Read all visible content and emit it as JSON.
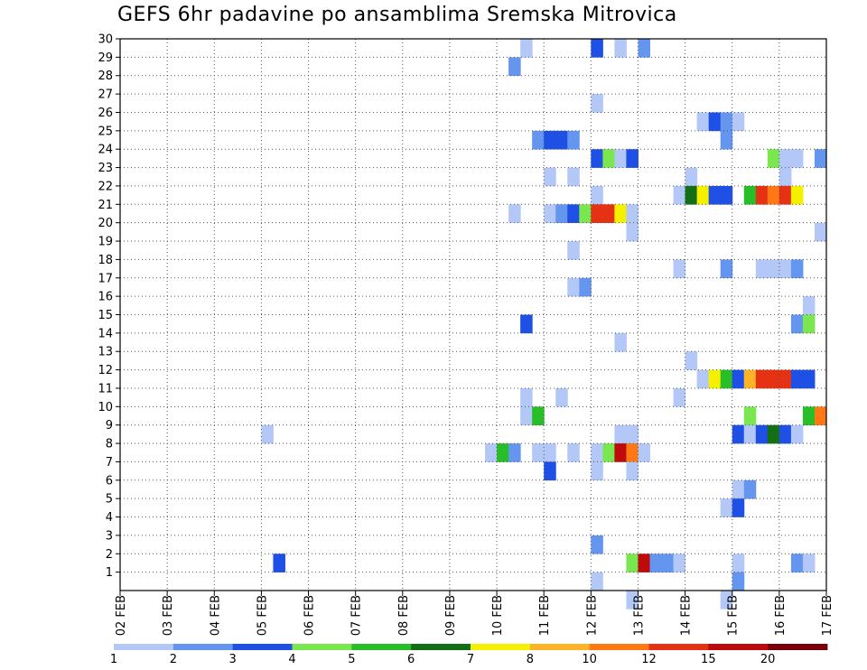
{
  "chart_data": {
    "type": "heatmap",
    "title": "GEFS 6hr padavine po ansamblima Sremska Mitrovica",
    "xlabel": "",
    "ylabel": "",
    "x_ticks": [
      "02 FEB",
      "03 FEB",
      "04 FEB",
      "05 FEB",
      "06 FEB",
      "07 FEB",
      "08 FEB",
      "09 FEB",
      "10 FEB",
      "11 FEB",
      "12 FEB",
      "13 FEB",
      "14 FEB",
      "15 FEB",
      "16 FEB",
      "17 FEB"
    ],
    "y_ticks": [
      "1",
      "2",
      "3",
      "4",
      "5",
      "6",
      "7",
      "8",
      "9",
      "10",
      "11",
      "12",
      "13",
      "14",
      "15",
      "16",
      "17",
      "18",
      "19",
      "20",
      "21",
      "22",
      "23",
      "24",
      "25",
      "26",
      "27",
      "28",
      "29",
      "30"
    ],
    "grid": true,
    "colorbar": {
      "tick_labels": [
        "1",
        "2",
        "3",
        "4",
        "5",
        "6",
        "7",
        "8",
        "10",
        "12",
        "15",
        "20"
      ],
      "colors": [
        "#b4c8f8",
        "#6496f0",
        "#1e50e6",
        "#7ae650",
        "#28be28",
        "#146e14",
        "#f5f000",
        "#ffb428",
        "#ff7814",
        "#e63214",
        "#be0a0a",
        "#78000a"
      ]
    },
    "cells": [
      [
        30,
        10.5,
        1
      ],
      [
        30,
        12.0,
        3
      ],
      [
        30,
        12.5,
        1
      ],
      [
        30,
        13.0,
        2
      ],
      [
        29,
        10.25,
        2
      ],
      [
        29,
        17.0,
        2
      ],
      [
        27,
        12.0,
        1
      ],
      [
        26,
        14.25,
        1
      ],
      [
        26,
        14.5,
        3
      ],
      [
        26,
        14.75,
        2
      ],
      [
        26,
        15.0,
        1
      ],
      [
        25,
        10.75,
        2
      ],
      [
        25,
        11.0,
        3
      ],
      [
        25,
        11.25,
        3
      ],
      [
        25,
        11.5,
        2
      ],
      [
        25,
        14.75,
        2
      ],
      [
        24,
        12.0,
        3
      ],
      [
        24,
        12.25,
        4
      ],
      [
        24,
        12.5,
        1
      ],
      [
        24,
        12.75,
        3
      ],
      [
        24,
        15.75,
        4
      ],
      [
        24,
        16.0,
        1
      ],
      [
        24,
        16.25,
        1
      ],
      [
        24,
        16.75,
        2
      ],
      [
        23,
        11.0,
        1
      ],
      [
        23,
        11.5,
        1
      ],
      [
        23,
        14.0,
        1
      ],
      [
        23,
        16.0,
        1
      ],
      [
        22,
        12.0,
        1
      ],
      [
        22,
        13.75,
        1
      ],
      [
        22,
        14.0,
        6
      ],
      [
        22,
        14.25,
        7
      ],
      [
        22,
        14.5,
        3
      ],
      [
        22,
        14.75,
        3
      ],
      [
        22,
        15.25,
        5
      ],
      [
        22,
        15.5,
        10
      ],
      [
        22,
        15.75,
        9
      ],
      [
        22,
        16.0,
        10
      ],
      [
        22,
        16.25,
        7
      ],
      [
        22,
        17.0,
        4
      ],
      [
        21,
        10.25,
        1
      ],
      [
        21,
        11.0,
        1
      ],
      [
        21,
        11.25,
        2
      ],
      [
        21,
        11.5,
        3
      ],
      [
        21,
        11.75,
        4
      ],
      [
        21,
        12.0,
        10
      ],
      [
        21,
        12.25,
        10
      ],
      [
        21,
        12.5,
        7
      ],
      [
        21,
        12.75,
        1
      ],
      [
        20,
        12.75,
        1
      ],
      [
        20,
        16.75,
        1
      ],
      [
        19,
        11.5,
        1
      ],
      [
        18,
        13.75,
        1
      ],
      [
        18,
        14.75,
        2
      ],
      [
        18,
        15.5,
        1
      ],
      [
        18,
        15.75,
        1
      ],
      [
        18,
        16.0,
        1
      ],
      [
        18,
        16.25,
        2
      ],
      [
        17,
        11.5,
        1
      ],
      [
        17,
        11.75,
        2
      ],
      [
        16,
        16.5,
        1
      ],
      [
        15,
        10.5,
        3
      ],
      [
        15,
        16.25,
        2
      ],
      [
        15,
        16.5,
        4
      ],
      [
        14,
        12.5,
        1
      ],
      [
        13,
        14.0,
        1
      ],
      [
        12,
        14.25,
        1
      ],
      [
        12,
        14.5,
        7
      ],
      [
        12,
        14.75,
        5
      ],
      [
        12,
        15.0,
        3
      ],
      [
        12,
        15.25,
        8
      ],
      [
        12,
        15.5,
        10
      ],
      [
        12,
        15.75,
        10
      ],
      [
        12,
        16.0,
        10
      ],
      [
        12,
        16.25,
        3
      ],
      [
        12,
        16.5,
        3
      ],
      [
        11,
        11.25,
        1
      ],
      [
        11,
        10.5,
        1
      ],
      [
        11,
        13.75,
        1
      ],
      [
        10,
        10.5,
        1
      ],
      [
        10,
        10.75,
        5
      ],
      [
        10,
        15.25,
        4
      ],
      [
        10,
        16.5,
        5
      ],
      [
        10,
        16.75,
        9
      ],
      [
        10,
        17.0,
        7
      ],
      [
        9,
        5.0,
        1
      ],
      [
        9,
        12.5,
        1
      ],
      [
        9,
        12.75,
        1
      ],
      [
        9,
        15.0,
        3
      ],
      [
        9,
        15.25,
        1
      ],
      [
        9,
        15.5,
        3
      ],
      [
        9,
        15.75,
        6
      ],
      [
        9,
        16.0,
        3
      ],
      [
        9,
        16.25,
        1
      ],
      [
        8,
        9.75,
        1
      ],
      [
        8,
        10.0,
        5
      ],
      [
        8,
        10.25,
        2
      ],
      [
        8,
        10.75,
        1
      ],
      [
        8,
        11.0,
        1
      ],
      [
        8,
        11.5,
        1
      ],
      [
        8,
        12.0,
        1
      ],
      [
        8,
        12.25,
        4
      ],
      [
        8,
        12.5,
        11
      ],
      [
        8,
        12.75,
        9
      ],
      [
        8,
        13.0,
        1
      ],
      [
        7,
        11.0,
        3
      ],
      [
        7,
        12.0,
        1
      ],
      [
        7,
        12.75,
        1
      ],
      [
        6,
        15.0,
        1
      ],
      [
        6,
        15.25,
        2
      ],
      [
        5,
        14.75,
        1
      ],
      [
        5,
        15.0,
        3
      ],
      [
        4,
        17.0,
        2
      ],
      [
        3,
        12.0,
        2
      ],
      [
        2,
        5.25,
        3
      ],
      [
        2,
        12.75,
        4
      ],
      [
        2,
        13.0,
        11
      ],
      [
        2,
        13.25,
        2
      ],
      [
        2,
        13.5,
        2
      ],
      [
        2,
        13.75,
        1
      ],
      [
        2,
        15.0,
        1
      ],
      [
        2,
        16.25,
        2
      ],
      [
        2,
        16.5,
        1
      ],
      [
        1,
        12.0,
        1
      ],
      [
        1,
        15.0,
        2
      ],
      [
        0,
        12.75,
        1
      ],
      [
        0,
        14.75,
        1
      ]
    ]
  }
}
